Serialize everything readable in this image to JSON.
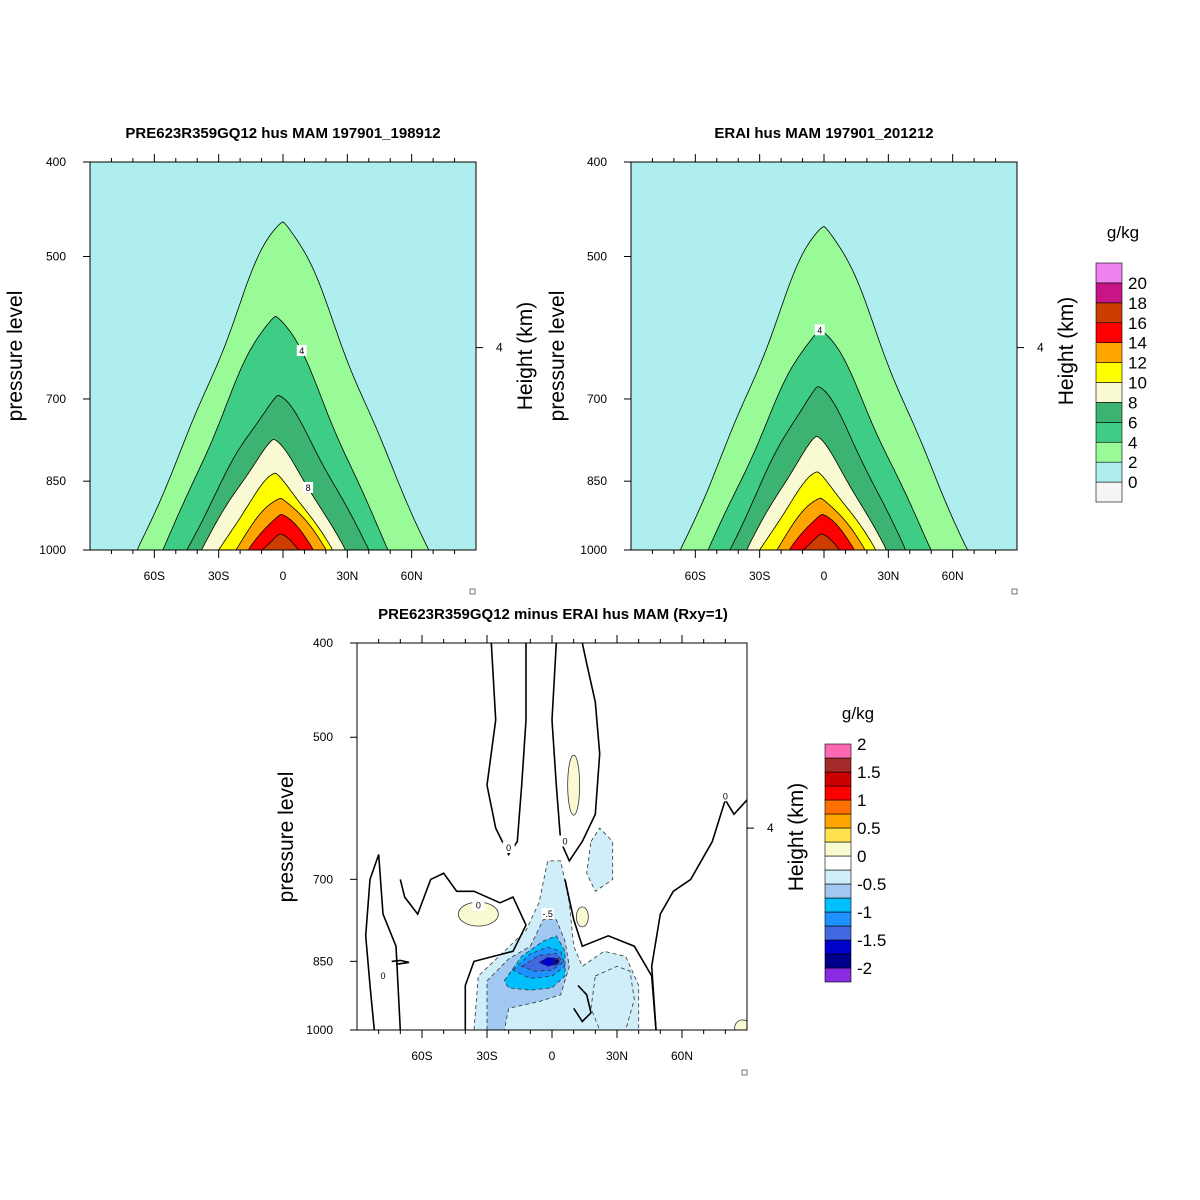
{
  "chart_data": [
    {
      "type": "contour",
      "title": "PRE623R359GQ12 hus MAM 197901_198912",
      "ylabel": "pressure level",
      "ylabel_right": "Height (km)",
      "xticks": [
        "60S",
        "30S",
        "0",
        "30N",
        "60N"
      ],
      "xtick_values": [
        -60,
        -30,
        0,
        30,
        60
      ],
      "xlim": [
        -90,
        90
      ],
      "yticks": [
        "400",
        "500",
        "700",
        "850",
        "1000"
      ],
      "ytick_values": [
        400,
        500,
        700,
        850,
        1000
      ],
      "ylim": [
        1000,
        400
      ],
      "yscale": "log",
      "right_ticks": [
        "4"
      ],
      "contour_labels": [
        "4",
        "8"
      ],
      "contour_levels": [
        2,
        4,
        6,
        8,
        10,
        12,
        14,
        16
      ],
      "peak_value": 17,
      "peak_latitude": 0,
      "moist_top_hpa": {
        "2": 455,
        "4": 570,
        "6": 695,
        "8": 775,
        "10": 838,
        "12": 880,
        "14": 915,
        "16": 965
      },
      "moist_base_lat_range": {
        "2": [
          -68,
          68
        ],
        "4": [
          -56,
          49
        ],
        "6": [
          -45,
          40
        ],
        "8": [
          -38,
          29
        ],
        "10": [
          -30,
          23
        ],
        "12": [
          -22,
          20
        ],
        "14": [
          -16,
          14
        ],
        "16": [
          -10,
          7
        ]
      }
    },
    {
      "type": "contour",
      "title": "ERAI hus MAM 197901_201212",
      "ylabel": "pressure level",
      "ylabel_right": "Height (km)",
      "xticks": [
        "60S",
        "30S",
        "0",
        "30N",
        "60N"
      ],
      "xtick_values": [
        -60,
        -30,
        0,
        30,
        60
      ],
      "xlim": [
        -90,
        90
      ],
      "yticks": [
        "400",
        "500",
        "700",
        "850",
        "1000"
      ],
      "ytick_values": [
        400,
        500,
        700,
        850,
        1000
      ],
      "ylim": [
        1000,
        400
      ],
      "yscale": "log",
      "right_ticks": [
        "4"
      ],
      "contour_labels": [
        "4"
      ],
      "contour_levels": [
        2,
        4,
        6,
        8,
        10,
        12,
        14,
        16
      ],
      "peak_value": 17,
      "peak_latitude": 0,
      "moist_top_hpa": {
        "2": 460,
        "4": 590,
        "6": 680,
        "8": 770,
        "10": 835,
        "12": 880,
        "14": 915,
        "16": 965
      },
      "moist_base_lat_range": {
        "2": [
          -67,
          67
        ],
        "4": [
          -54,
          50
        ],
        "6": [
          -44,
          38
        ],
        "8": [
          -36,
          29
        ],
        "10": [
          -30,
          24
        ],
        "12": [
          -22,
          19
        ],
        "14": [
          -16,
          14
        ],
        "16": [
          -10,
          7
        ]
      }
    },
    {
      "type": "contour",
      "title": "PRE623R359GQ12 minus ERAI hus MAM (Rxy=1)",
      "ylabel": "pressure level",
      "ylabel_right": "Height (km)",
      "xticks": [
        "60S",
        "30S",
        "0",
        "30N",
        "60N"
      ],
      "xtick_values": [
        -60,
        -30,
        0,
        30,
        60
      ],
      "xlim": [
        -90,
        90
      ],
      "yticks": [
        "400",
        "500",
        "700",
        "850",
        "1000"
      ],
      "ytick_values": [
        400,
        500,
        700,
        850,
        1000
      ],
      "ylim": [
        1000,
        400
      ],
      "yscale": "log",
      "right_ticks": [
        "4"
      ],
      "contour_labels": [
        "0",
        "0",
        "0",
        "0",
        "-.5",
        "0"
      ],
      "contour_levels": [
        -2,
        -1.75,
        -1.5,
        -1.25,
        -1,
        -0.75,
        -0.5,
        -0.25,
        0,
        0.25,
        0.5,
        0.75,
        1,
        1.25,
        1.5,
        1.75,
        2
      ],
      "min_value": -1.9,
      "min_location": {
        "lat": 2,
        "hpa": 850
      },
      "positive_features": [
        {
          "lat": 10,
          "hpa": 560,
          "value": 0.3
        },
        {
          "lat": -34,
          "hpa": 760,
          "value": 0.3
        },
        {
          "lat": 14,
          "hpa": 765,
          "value": 0.3
        },
        {
          "lat": 86,
          "hpa": 1000,
          "value": 0.3
        }
      ]
    }
  ],
  "colorbars": [
    {
      "title": "g/kg",
      "labels": [
        "0",
        "2",
        "4",
        "6",
        "8",
        "10",
        "12",
        "14",
        "16",
        "18",
        "20"
      ],
      "colors": [
        "#f5f5f5",
        "#afeeee",
        "#98fb98",
        "#3fcd85",
        "#3cb371",
        "#fafad2",
        "#ffff00",
        "#ffa500",
        "#ff0000",
        "#cc3d00",
        "#c71585",
        "#ee82ee"
      ]
    },
    {
      "title": "g/kg",
      "labels": [
        "-2",
        "-1.5",
        "-1",
        "-0.5",
        "0",
        "0.5",
        "1",
        "1.5",
        "2"
      ],
      "colors": [
        "#8a2be2",
        "#00008b",
        "#0000cd",
        "#4169e1",
        "#1e90ff",
        "#00bfff",
        "#a1c8f0",
        "#cfeefa",
        "#ffffff",
        "#fafad2",
        "#ffe24d",
        "#ffa500",
        "#ff7000",
        "#ff0000",
        "#cc0000",
        "#a52a2a",
        "#ff69b4"
      ]
    }
  ]
}
